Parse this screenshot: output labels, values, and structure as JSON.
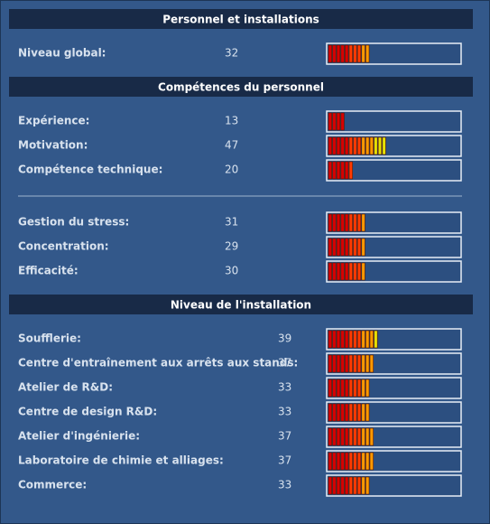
{
  "bar_range": [
    0,
    100
  ],
  "sections": [
    {
      "title": "Personnel et installations",
      "groups": [
        [
          {
            "label": "Niveau global:",
            "value": 32
          }
        ]
      ]
    },
    {
      "title": "Compétences du personnel",
      "groups": [
        [
          {
            "label": "Expérience:",
            "value": 13
          },
          {
            "label": "Motivation:",
            "value": 47
          },
          {
            "label": "Compétence technique:",
            "value": 20
          }
        ],
        [
          {
            "label": "Gestion du stress:",
            "value": 31
          },
          {
            "label": "Concentration:",
            "value": 29
          },
          {
            "label": "Efficacité:",
            "value": 30
          }
        ]
      ]
    },
    {
      "title": "Niveau de l'installation",
      "groups": [
        [
          {
            "label": "Soufflerie:",
            "value": 39
          },
          {
            "label": "Centre d'entraînement aux arrêts aux stands:",
            "value": 37
          },
          {
            "label": "Atelier de R&D:",
            "value": 33
          },
          {
            "label": "Centre de design R&D:",
            "value": 33
          },
          {
            "label": "Atelier d'ingénierie:",
            "value": 37
          },
          {
            "label": "Laboratoire de chimie et alliages:",
            "value": 37
          },
          {
            "label": "Commerce:",
            "value": 33
          }
        ]
      ]
    }
  ]
}
